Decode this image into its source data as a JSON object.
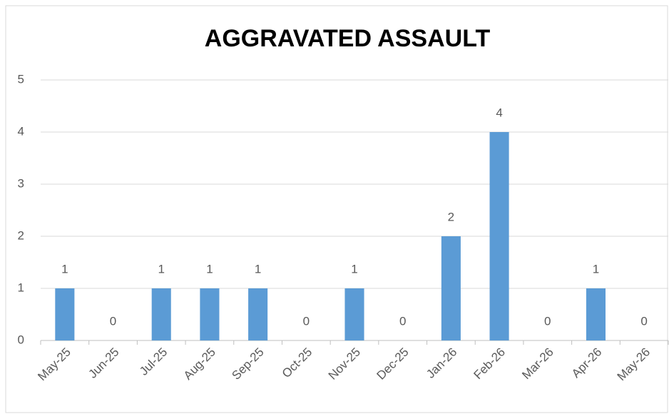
{
  "chart_data": {
    "type": "bar",
    "title": "AGGRAVATED ASSAULT",
    "categories": [
      "May-25",
      "Jun-25",
      "Jul-25",
      "Aug-25",
      "Sep-25",
      "Oct-25",
      "Nov-25",
      "Dec-25",
      "Jan-26",
      "Feb-26",
      "Mar-26",
      "Apr-26",
      "May-26"
    ],
    "values": [
      1,
      0,
      1,
      1,
      1,
      0,
      1,
      0,
      2,
      4,
      0,
      1,
      0
    ],
    "color": "#5b9bd5",
    "ylim": [
      0,
      5
    ],
    "yticks": [
      0,
      1,
      2,
      3,
      4,
      5
    ],
    "grid": true,
    "data_labels": true
  }
}
